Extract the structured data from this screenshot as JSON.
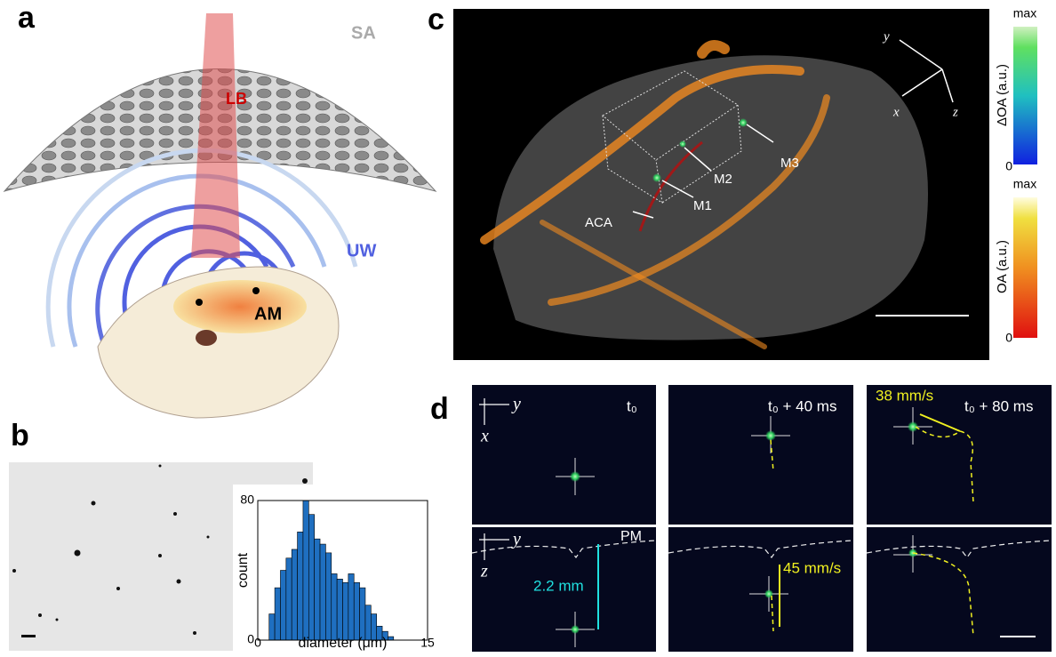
{
  "panel_a": {
    "label": "a",
    "sa": "SA",
    "lb": "LB",
    "uw": "UW",
    "am": "AM"
  },
  "panel_b": {
    "label": "b"
  },
  "panel_c": {
    "label": "c",
    "aca": "ACA",
    "m1": "M1",
    "m2": "M2",
    "m3": "M3",
    "axis_x": "x",
    "axis_y": "y",
    "axis_z": "z",
    "colorbar_top": {
      "max": "max",
      "min": "0",
      "title": "ΔOA (a.u.)"
    },
    "colorbar_bottom": {
      "max": "max",
      "min": "0",
      "title": "OA (a.u.)"
    }
  },
  "panel_d": {
    "label": "d",
    "time_0": "t₀",
    "time_1": "t₀ + 40 ms",
    "time_2": "t₀ + 80 ms",
    "speed_1": "38 mm/s",
    "speed_2": "45 mm/s",
    "depth": "2.2 mm",
    "pm": "PM",
    "axis_y_top": "y",
    "axis_x_top": "x",
    "axis_y_bottom": "y",
    "axis_z_bottom": "z"
  },
  "chart_data": {
    "type": "histogram",
    "xlabel": "diameter (μm)",
    "ylabel": "count",
    "bins": [
      1,
      1.5,
      2,
      2.5,
      3,
      3.5,
      4,
      4.5,
      5,
      5.5,
      6,
      6.5,
      7,
      7.5,
      8,
      8.5,
      9,
      9.5,
      10,
      10.5,
      11,
      11.5,
      12
    ],
    "values": [
      15,
      30,
      40,
      47,
      52,
      62,
      80,
      72,
      58,
      55,
      50,
      38,
      35,
      33,
      38,
      33,
      30,
      20,
      15,
      8,
      5,
      2
    ],
    "color": "#1f6fc0",
    "xlim": [
      0,
      15
    ],
    "xticks": [
      0,
      15
    ],
    "ylim": [
      0,
      80
    ],
    "yticks": [
      0,
      80
    ]
  }
}
